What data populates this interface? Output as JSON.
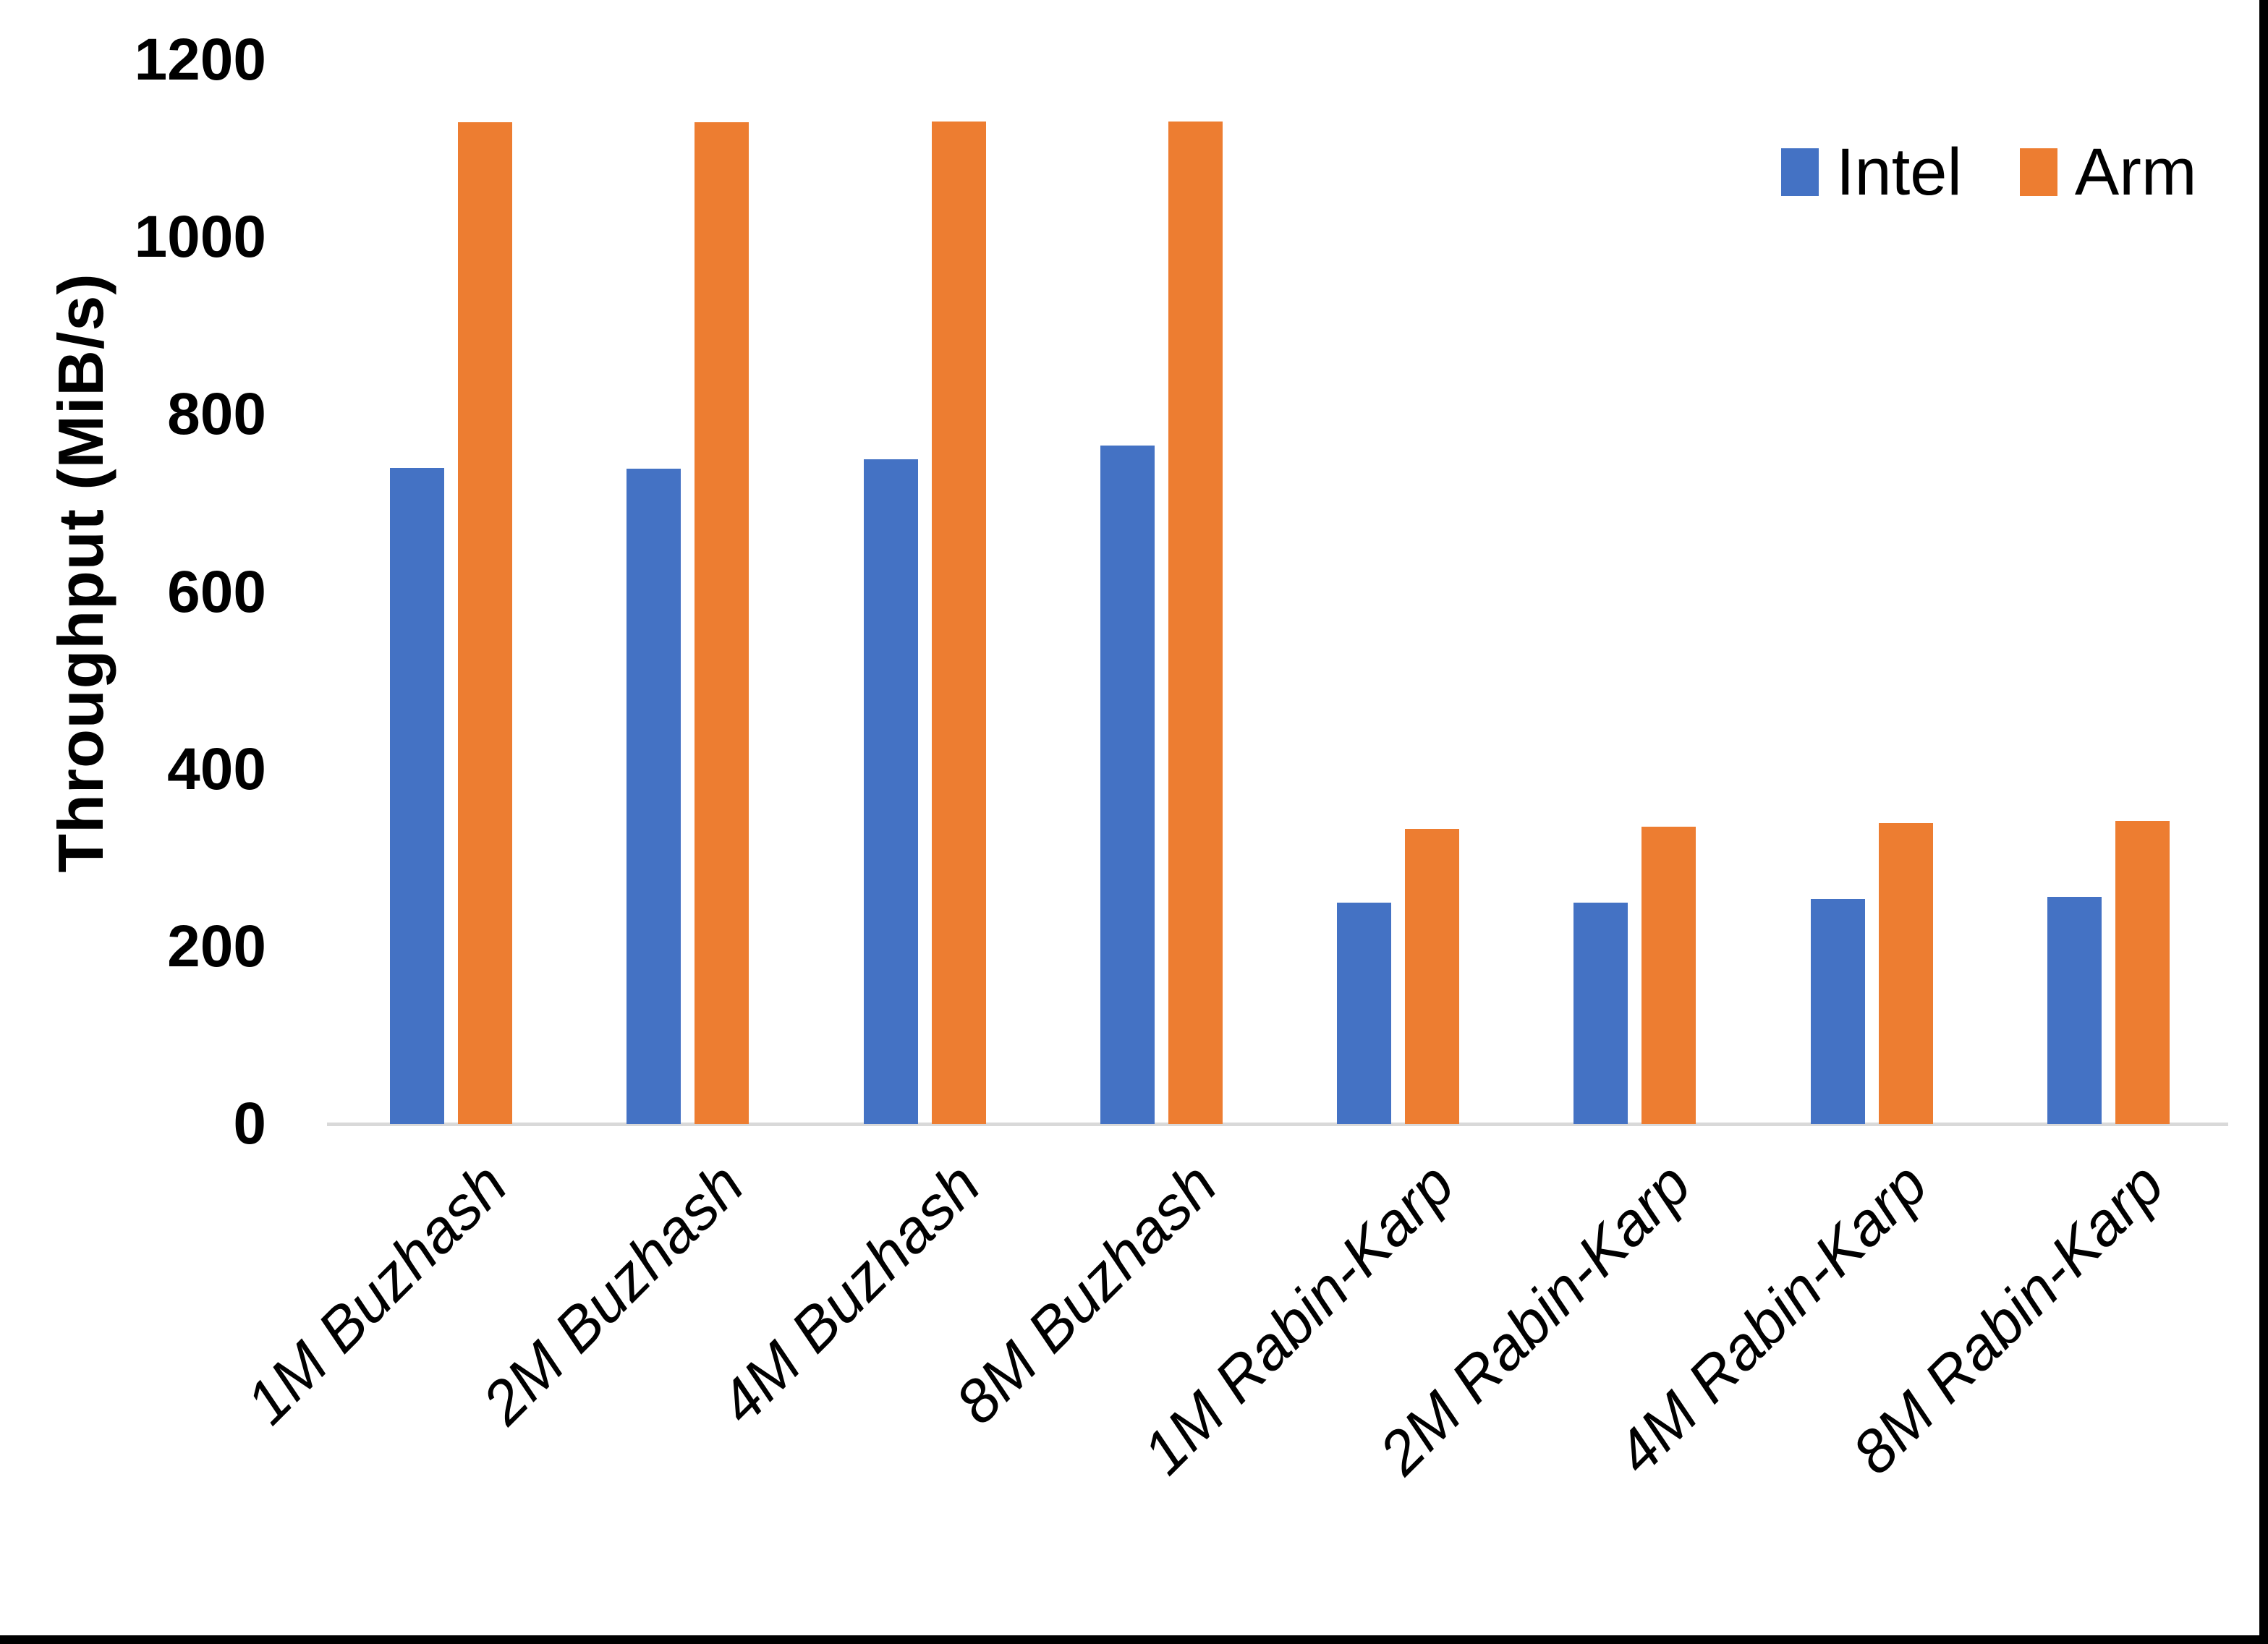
{
  "chart_data": {
    "type": "bar",
    "title": "",
    "categories": [
      "1M Buzhash",
      "2M Buzhash",
      "4M Buzhash",
      "8M Buzhash",
      "1M Rabin-Karp",
      "2M Rabin-Karp",
      "4M Rabin-Karp",
      "8M Rabin-Karp"
    ],
    "series": [
      {
        "name": "Intel",
        "color": "#4472C4",
        "values": [
          740,
          739,
          750,
          765,
          250,
          250,
          254,
          256
        ]
      },
      {
        "name": "Arm",
        "color": "#ED7D31",
        "values": [
          1130,
          1130,
          1131,
          1131,
          333,
          335,
          339,
          342
        ]
      }
    ],
    "xlabel": "",
    "ylabel": "Throughput (MiB/s)",
    "ylim": [
      0,
      1200
    ],
    "yticks": [
      0,
      200,
      400,
      600,
      800,
      1000,
      1200
    ],
    "grid": false,
    "legend_position": "top-right"
  },
  "colors": {
    "intel_series": "#4472C4",
    "arm_series": "#ED7D31",
    "axis_line": "#D9D9D9",
    "text": "#000000",
    "frame_border": "#000000",
    "background": "#FFFFFF"
  }
}
